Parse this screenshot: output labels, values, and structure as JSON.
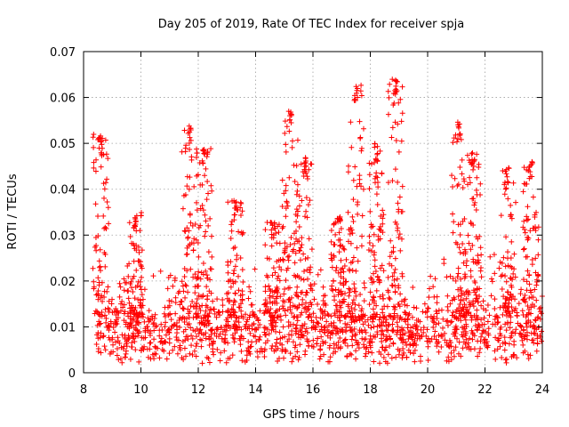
{
  "chart_data": {
    "type": "scatter",
    "title": "Day 205 of 2019, Rate Of TEC Index for receiver spja",
    "xlabel": "GPS time / hours",
    "ylabel": "ROTI / TECUs",
    "xlim": [
      8,
      24
    ],
    "ylim": [
      0,
      0.07
    ],
    "x_ticks": [
      8,
      10,
      12,
      14,
      16,
      18,
      20,
      22,
      24
    ],
    "x_tick_labels": [
      "8",
      "10",
      "12",
      "14",
      "16",
      "18",
      "20",
      "22",
      "24"
    ],
    "y_ticks": [
      0,
      0.01,
      0.02,
      0.03,
      0.04,
      0.05,
      0.06,
      0.07
    ],
    "y_tick_labels": [
      "0",
      "0.01",
      "0.02",
      "0.03",
      "0.04",
      "0.05",
      "0.06",
      "0.07"
    ],
    "grid": true,
    "marker": "+",
    "color": "#ff0000",
    "series": [
      {
        "name": "ROTI",
        "x_start": 8.45,
        "x_end": 24.0,
        "baseline_level": 0.009,
        "baseline_spread": 0.005,
        "bursts": [
          {
            "x": 8.6,
            "peak": 0.052
          },
          {
            "x": 9.8,
            "peak": 0.035
          },
          {
            "x": 11.7,
            "peak": 0.054
          },
          {
            "x": 12.2,
            "peak": 0.049
          },
          {
            "x": 13.3,
            "peak": 0.038
          },
          {
            "x": 14.6,
            "peak": 0.033
          },
          {
            "x": 15.2,
            "peak": 0.057
          },
          {
            "x": 15.7,
            "peak": 0.047
          },
          {
            "x": 16.9,
            "peak": 0.034
          },
          {
            "x": 17.5,
            "peak": 0.063
          },
          {
            "x": 18.2,
            "peak": 0.05
          },
          {
            "x": 18.9,
            "peak": 0.064
          },
          {
            "x": 21.1,
            "peak": 0.055
          },
          {
            "x": 21.6,
            "peak": 0.048
          },
          {
            "x": 22.8,
            "peak": 0.045
          },
          {
            "x": 23.6,
            "peak": 0.046
          }
        ]
      }
    ]
  }
}
